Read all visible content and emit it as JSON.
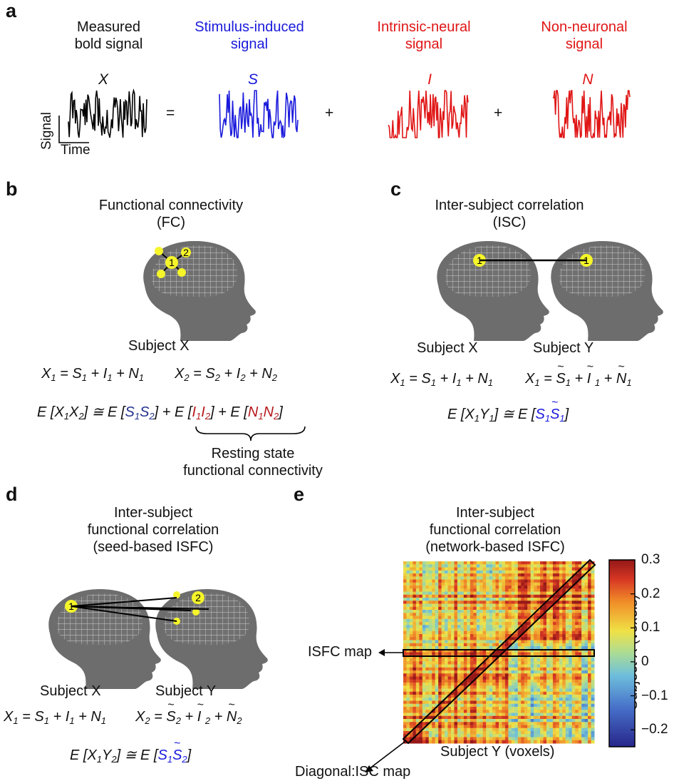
{
  "panels": {
    "a": {
      "letter": "a",
      "components": [
        {
          "title": "Measured\nbold signal",
          "symbol": "X",
          "color": "#000000"
        },
        {
          "title": "Stimulus-induced\nsignal",
          "symbol": "S",
          "color": "#1a1adc"
        },
        {
          "title": "Intrinsic-neural\nsignal",
          "symbol": "I",
          "color": "#e01515"
        },
        {
          "title": "Non-neuronal\nsignal",
          "symbol": "N",
          "color": "#e01515"
        }
      ],
      "ops": [
        "=",
        "+",
        "+"
      ],
      "axis_y": "Signal",
      "axis_x": "Time"
    },
    "b": {
      "letter": "b",
      "title_line1": "Functional connectivity",
      "title_line2": "(FC)",
      "node1": "1",
      "node2": "2",
      "subject": "Subject X",
      "brace_label_line1": "Resting state",
      "brace_label_line2": "functional connectivity"
    },
    "c": {
      "letter": "c",
      "title_line1": "Inter-subject correlation",
      "title_line2": "(ISC)",
      "node1": "1",
      "subject_left": "Subject X",
      "subject_right": "Subject Y"
    },
    "d": {
      "letter": "d",
      "title_line1": "Inter-subject",
      "title_line2": "functional correlation",
      "title_line3": "(seed-based ISFC)",
      "node1": "1",
      "node2": "2",
      "subject_left": "Subject X",
      "subject_right": "Subject Y"
    },
    "e": {
      "letter": "e",
      "title_line1": "Inter-subject",
      "title_line2": "functional correlation",
      "title_line3": "(network-based ISFC)",
      "isfc_label": "ISFC map",
      "diag_label": "Diagonal:ISC map",
      "xlabel": "Subject Y (voxels)",
      "ylabel": "Subject X (voxels)",
      "colorbar_ticks": [
        "0.3",
        "0.2",
        "0.1",
        "0",
        "−0.1",
        "−0.2"
      ]
    }
  },
  "colors": {
    "head": "#6d6d6d",
    "node": "#f5f52a",
    "signal_black": "#000000",
    "signal_blue": "#1a1adc",
    "signal_red": "#e01515"
  },
  "chart_data": {
    "type": "heatmap",
    "title": "",
    "xlabel": "Subject Y (voxels)",
    "ylabel": "Subject X (voxels)",
    "colorbar_range": [
      -0.25,
      0.3
    ],
    "colorbar_ticks": [
      0.3,
      0.2,
      0.1,
      0,
      -0.1,
      -0.2
    ],
    "regions": [
      {
        "name": "upper-left block",
        "approx_value": 0.18
      },
      {
        "name": "upper-right block",
        "approx_value": 0.22
      },
      {
        "name": "lower-left block",
        "approx_value": 0.2
      },
      {
        "name": "lower-right block",
        "approx_value": 0.12
      },
      {
        "name": "bottom-left corner",
        "approx_value": 0.3
      }
    ]
  }
}
